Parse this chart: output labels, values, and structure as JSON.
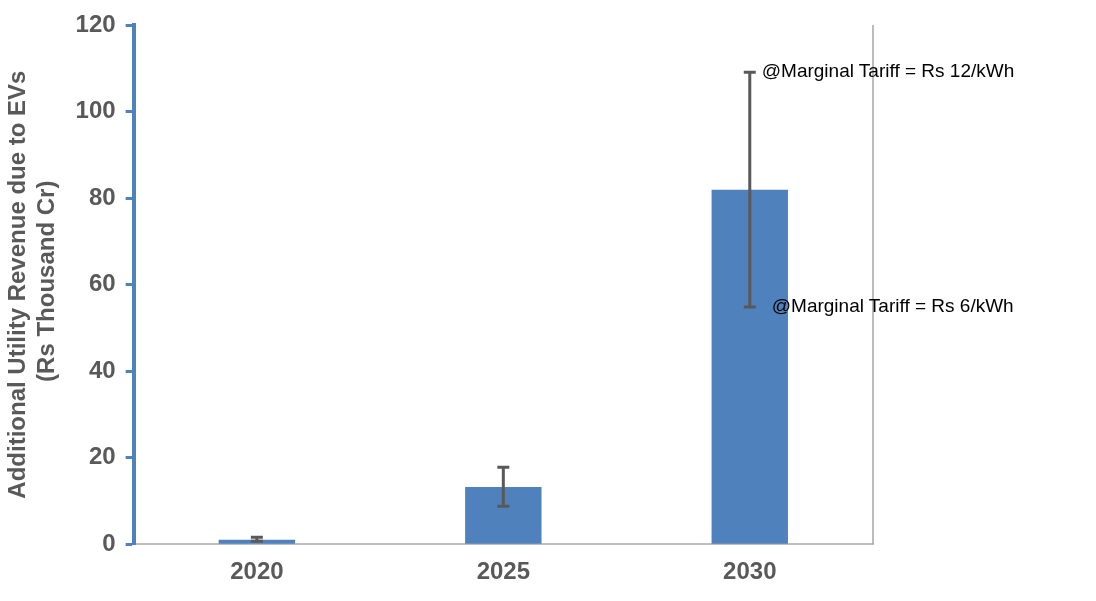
{
  "chart_data": {
    "type": "bar",
    "ylabel": "Additional Utility Revenue due to EVs  (Rs Thousand Cr)",
    "categories": [
      "2020",
      "2025",
      "2030"
    ],
    "values": [
      1,
      13.2,
      81.9
    ],
    "errors": [
      [
        0.7,
        1.6
      ],
      [
        8.8,
        17.8
      ],
      [
        54.8,
        109.1
      ]
    ],
    "color": "#4f81bd",
    "ylim": [
      0,
      120
    ],
    "yticks": [
      0,
      20,
      40,
      60,
      80,
      100,
      120
    ],
    "annotations": [
      {
        "text": "@Marginal Tariff = Rs 12/kWh",
        "x": "2030",
        "y": 109.1
      },
      {
        "text": "@Marginal Tariff = Rs 6/kWh",
        "x": "2030",
        "y": 54.8
      }
    ],
    "grid": false,
    "legend": false
  }
}
